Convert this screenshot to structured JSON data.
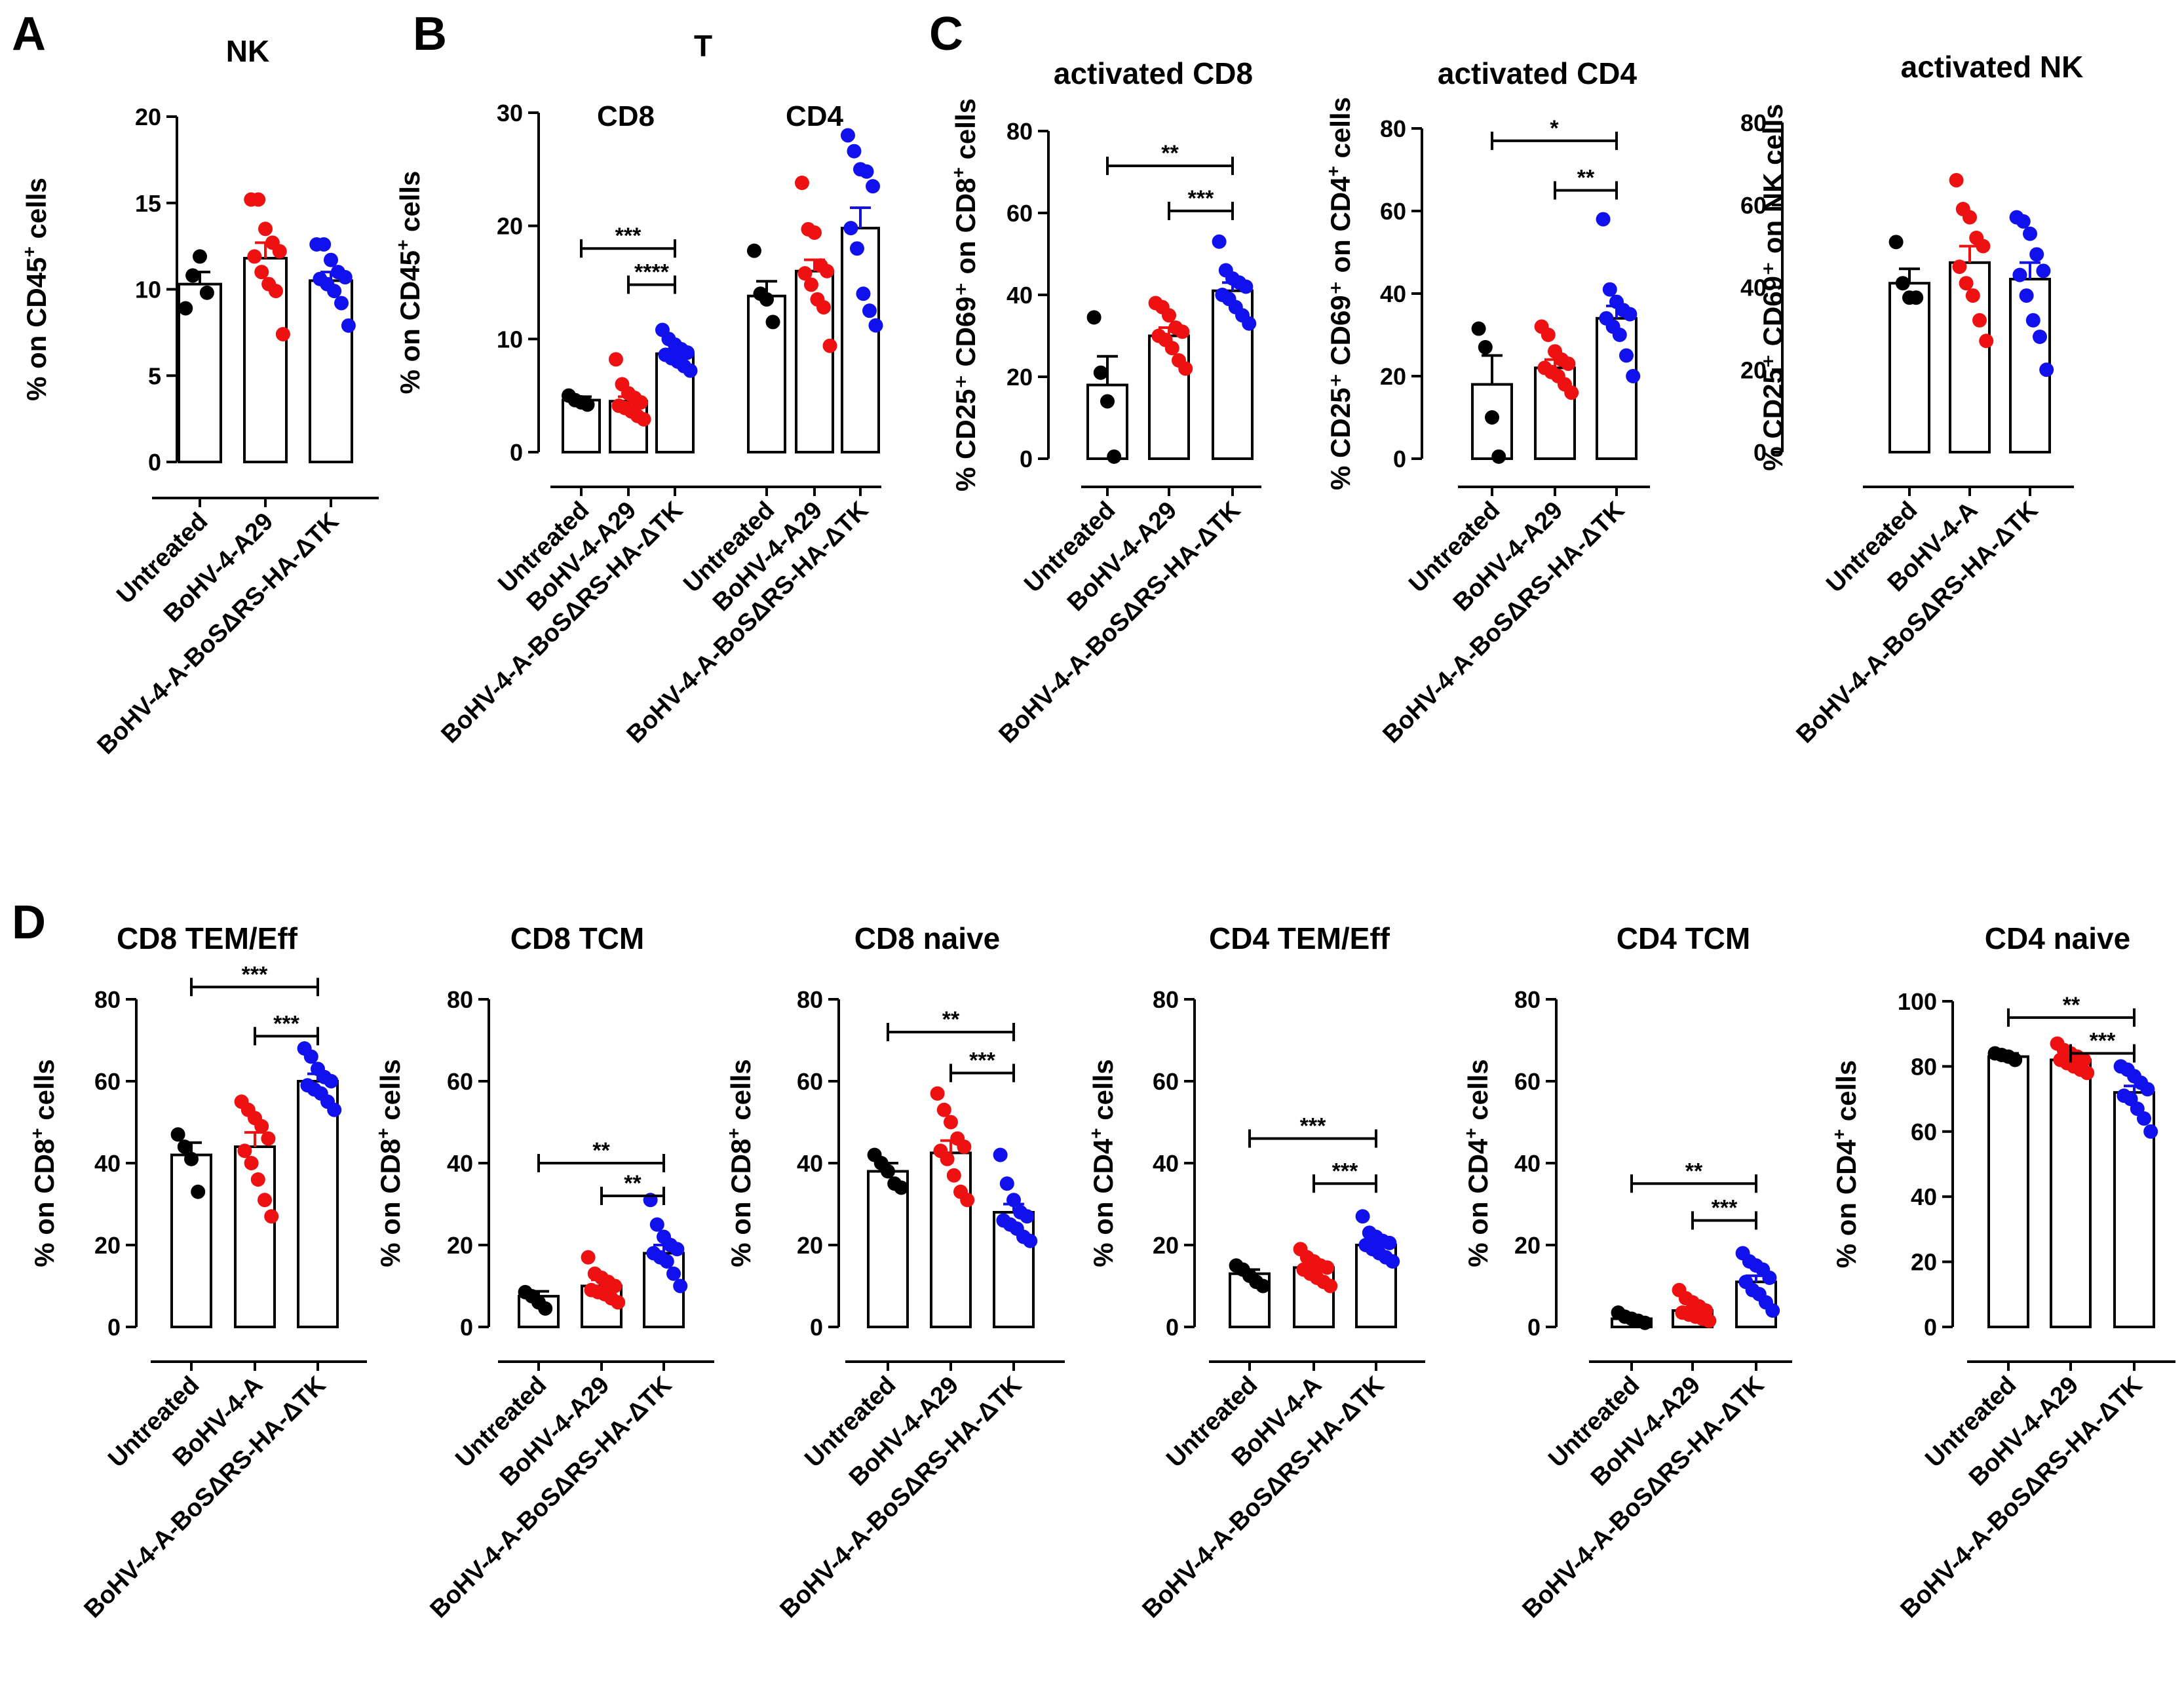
{
  "panel_letters": [
    "A",
    "B",
    "C",
    "D"
  ],
  "colors": {
    "untreated": "#000000",
    "virus": "#ee1111",
    "bosaRS": "#1111ee"
  },
  "chart_data": [
    {
      "id": "A",
      "type": "bar",
      "title": "NK",
      "ylabel": "% on CD45",
      "ylabel_sup": "+",
      "ylabel_tail": " cells",
      "ylim": [
        0,
        20
      ],
      "ticks": [
        0,
        5,
        10,
        15,
        20
      ],
      "categories": [
        "Untreated",
        "BoHV-4-A29",
        "BoHV-4-A-BoSΔRS-HA-ΔTK"
      ],
      "values": [
        10.3,
        11.8,
        10.5
      ],
      "sem": [
        0.7,
        0.9,
        0.5
      ],
      "points": [
        [
          8.9,
          10.8,
          11.9,
          9.8
        ],
        [
          15.2,
          15.2,
          13.5,
          12.7,
          12.2,
          11.9,
          11.0,
          10.3,
          9.9,
          7.4
        ],
        [
          12.6,
          12.6,
          11.7,
          11.0,
          10.7,
          10.6,
          10.3,
          9.9,
          9.2,
          7.9
        ]
      ],
      "brackets": []
    },
    {
      "id": "B",
      "type": "bar",
      "title": "T",
      "ylabel": "% on CD45",
      "ylabel_sup": "+",
      "ylabel_tail": " cells",
      "ylim": [
        0,
        30
      ],
      "ticks": [
        0,
        10,
        20,
        30
      ],
      "subtitles": [
        "CD8",
        "CD4"
      ],
      "categories": [
        "Untreated",
        "BoHV-4-A29",
        "BoHV-4-A-BoSΔRS-HA-ΔTK",
        "Untreated",
        "BoHV-4-A29",
        "BoHV-4-A-BoSΔRS-HA-ΔTK"
      ],
      "values": [
        4.6,
        4.5,
        8.7,
        13.8,
        16.0,
        19.8
      ],
      "sem": [
        0.3,
        0.4,
        0.4,
        1.3,
        1.0,
        1.8
      ],
      "points": [
        [
          5.0,
          4.6,
          4.4,
          4.2
        ],
        [
          8.2,
          6.0,
          5.2,
          4.8,
          4.4,
          4.1,
          3.9,
          3.6,
          3.2,
          2.9
        ],
        [
          10.8,
          10.0,
          9.5,
          9.1,
          8.8,
          8.6,
          8.3,
          8.0,
          7.6,
          7.2
        ],
        [
          17.8,
          14.0,
          13.5,
          11.5
        ],
        [
          23.8,
          19.7,
          19.4,
          16.5,
          16.0,
          15.8,
          14.8,
          13.5,
          12.8,
          9.4
        ],
        [
          28.0,
          26.6,
          25.0,
          24.8,
          23.5,
          19.8,
          18.0,
          14.0,
          12.5,
          11.2
        ]
      ],
      "brackets": [
        {
          "from": 0,
          "to": 2,
          "label": "***",
          "y": 18.0
        },
        {
          "from": 1,
          "to": 2,
          "label": "****",
          "y": 14.8
        }
      ]
    },
    {
      "id": "C1",
      "type": "bar",
      "title": "activated CD8",
      "ylabel": "% CD25⁺ CD69⁺ on CD8",
      "ylabel_sup": "+",
      "ylabel_tail": " cells",
      "ylim": [
        0,
        80
      ],
      "ticks": [
        0,
        20,
        40,
        60,
        80
      ],
      "categories": [
        "Untreated",
        "BoHV-4-A29",
        "BoHV-4-A-BoSΔRS-HA-ΔTK"
      ],
      "values": [
        18,
        30,
        41
      ],
      "sem": [
        7,
        2,
        2
      ],
      "points": [
        [
          34.5,
          21,
          14,
          0.5
        ],
        [
          38,
          37,
          35,
          32,
          31,
          30,
          29,
          27,
          24,
          22
        ],
        [
          53,
          46,
          44,
          43,
          42,
          40,
          39,
          37,
          35,
          33
        ]
      ],
      "brackets": [
        {
          "from": 0,
          "to": 2,
          "label": "**",
          "y": 71.5
        },
        {
          "from": 1,
          "to": 2,
          "label": "***",
          "y": 60.5
        }
      ]
    },
    {
      "id": "C2",
      "type": "bar",
      "title": "activated CD4",
      "ylabel": "% CD25⁺ CD69⁺ on CD4",
      "ylabel_sup": "+",
      "ylabel_tail": " cells",
      "ylim": [
        0,
        80
      ],
      "ticks": [
        0,
        20,
        40,
        60,
        80
      ],
      "categories": [
        "Untreated",
        "BoHV-4-A29",
        "BoHV-4-A-BoSΔRS-HA-ΔTK"
      ],
      "values": [
        18,
        22,
        34
      ],
      "sem": [
        7,
        2,
        3
      ],
      "points": [
        [
          31.5,
          27,
          10,
          0.5
        ],
        [
          32,
          30,
          26,
          24,
          23,
          22,
          21,
          20,
          18,
          16
        ],
        [
          58,
          41,
          38,
          36,
          35,
          34,
          32,
          30,
          25,
          20
        ]
      ],
      "brackets": [
        {
          "from": 0,
          "to": 2,
          "label": "*",
          "y": 77
        },
        {
          "from": 1,
          "to": 2,
          "label": "**",
          "y": 65
        }
      ]
    },
    {
      "id": "C3",
      "type": "bar",
      "title": "activated NK",
      "ylabel": "% CD25⁺ CD69⁺ on NK",
      "ylabel_sup": "",
      "ylabel_tail": " cells",
      "ylim": [
        0,
        80
      ],
      "ticks": [
        0,
        20,
        40,
        60,
        80
      ],
      "categories": [
        "Untreated",
        "BoHV-4-A",
        "BoHV-4-A-BoSΔRS-HA-ΔTK"
      ],
      "values": [
        41,
        46,
        42
      ],
      "sem": [
        3.5,
        4,
        4
      ],
      "points": [
        [
          51,
          41,
          37.5,
          37.5
        ],
        [
          66,
          59,
          57,
          52,
          50,
          45,
          41,
          38,
          32,
          27
        ],
        [
          57,
          56,
          53,
          48,
          44,
          43,
          38,
          32,
          28,
          20
        ]
      ],
      "brackets": []
    },
    {
      "id": "D1",
      "type": "bar",
      "title": "CD8 TEM/Eff",
      "ylabel": "% on CD8",
      "ylabel_sup": "+",
      "ylabel_tail": " cells",
      "ylim": [
        0,
        80
      ],
      "ticks": [
        0,
        20,
        40,
        60,
        80
      ],
      "categories": [
        "Untreated",
        "BoHV-4-A",
        "BoHV-4-A-BoSΔRS-HA-ΔTK"
      ],
      "values": [
        42,
        44,
        60
      ],
      "sem": [
        3,
        3.5,
        1.8
      ],
      "points": [
        [
          47,
          44,
          41,
          33
        ],
        [
          55,
          53,
          51,
          49,
          46,
          43,
          40,
          36,
          31,
          27
        ],
        [
          68,
          66,
          63,
          61,
          60,
          59,
          58,
          57,
          55,
          53
        ]
      ],
      "brackets": [
        {
          "from": 0,
          "to": 2,
          "label": "***",
          "y": 83
        },
        {
          "from": 1,
          "to": 2,
          "label": "***",
          "y": 71
        }
      ]
    },
    {
      "id": "D2",
      "type": "bar",
      "title": "CD8 TCM",
      "ylabel": "% on CD8",
      "ylabel_sup": "+",
      "ylabel_tail": " cells",
      "ylim": [
        0,
        80
      ],
      "ticks": [
        0,
        20,
        40,
        60,
        80
      ],
      "categories": [
        "Untreated",
        "BoHV-4-A29",
        "BoHV-4-A-BoSΔRS-HA-ΔTK"
      ],
      "values": [
        7.5,
        10,
        18
      ],
      "sem": [
        1.2,
        1.5,
        2
      ],
      "points": [
        [
          8.5,
          7.5,
          6,
          4.5
        ],
        [
          17,
          13,
          12,
          11,
          10,
          9,
          8.5,
          8,
          7,
          6
        ],
        [
          31,
          25,
          22,
          20,
          19,
          18,
          17,
          16,
          13,
          10
        ]
      ],
      "brackets": [
        {
          "from": 0,
          "to": 2,
          "label": "**",
          "y": 40
        },
        {
          "from": 1,
          "to": 2,
          "label": "**",
          "y": 32
        }
      ]
    },
    {
      "id": "D3",
      "type": "bar",
      "title": "CD8 naive",
      "ylabel": "% on CD8",
      "ylabel_sup": "+",
      "ylabel_tail": " cells",
      "ylim": [
        0,
        80
      ],
      "ticks": [
        0,
        20,
        40,
        60,
        80
      ],
      "categories": [
        "Untreated",
        "BoHV-4-A29",
        "BoHV-4-A-BoSΔRS-HA-ΔTK"
      ],
      "values": [
        38,
        42.5,
        28
      ],
      "sem": [
        2,
        3,
        2
      ],
      "points": [
        [
          42,
          40,
          38,
          35,
          34
        ],
        [
          57,
          53,
          50,
          46,
          44,
          43,
          41,
          37,
          33,
          31
        ],
        [
          42,
          35,
          31,
          28,
          27,
          26,
          25,
          24,
          22,
          21
        ]
      ],
      "brackets": [
        {
          "from": 0,
          "to": 2,
          "label": "**",
          "y": 72
        },
        {
          "from": 1,
          "to": 2,
          "label": "***",
          "y": 62
        }
      ]
    },
    {
      "id": "D4",
      "type": "bar",
      "title": "CD4 TEM/Eff",
      "ylabel": "% on CD4",
      "ylabel_sup": "+",
      "ylabel_tail": " cells",
      "ylim": [
        0,
        80
      ],
      "ticks": [
        0,
        20,
        40,
        60,
        80
      ],
      "categories": [
        "Untreated",
        "BoHV-4-A",
        "BoHV-4-A-BoSΔRS-HA-ΔTK"
      ],
      "values": [
        13,
        14.5,
        20
      ],
      "sem": [
        1,
        1,
        1
      ],
      "points": [
        [
          15,
          14,
          12.5,
          11,
          10
        ],
        [
          19,
          17,
          16,
          15,
          14.5,
          14,
          13,
          12,
          11,
          10
        ],
        [
          27,
          23,
          22,
          21,
          20.5,
          20,
          19,
          18,
          17,
          16
        ]
      ],
      "brackets": [
        {
          "from": 0,
          "to": 2,
          "label": "***",
          "y": 46
        },
        {
          "from": 1,
          "to": 2,
          "label": "***",
          "y": 35
        }
      ]
    },
    {
      "id": "D5",
      "type": "bar",
      "title": "CD4 TCM",
      "ylabel": "% on CD4",
      "ylabel_sup": "+",
      "ylabel_tail": " cells",
      "ylim": [
        0,
        80
      ],
      "ticks": [
        0,
        20,
        40,
        60,
        80
      ],
      "categories": [
        "Untreated",
        "BoHV-4-A29",
        "BoHV-4-A-BoSΔRS-HA-ΔTK"
      ],
      "values": [
        2,
        4,
        11
      ],
      "sem": [
        0.5,
        0.8,
        1.5
      ],
      "points": [
        [
          3.5,
          2.5,
          2,
          1.5,
          1
        ],
        [
          9,
          7,
          6,
          5,
          4,
          3.5,
          3,
          2.5,
          2,
          1.5
        ],
        [
          18,
          16,
          15,
          14,
          12,
          11,
          9,
          8,
          6,
          4
        ]
      ],
      "brackets": [
        {
          "from": 0,
          "to": 2,
          "label": "**",
          "y": 35
        },
        {
          "from": 1,
          "to": 2,
          "label": "***",
          "y": 26
        }
      ]
    },
    {
      "id": "D6",
      "type": "bar",
      "title": "CD4 naive",
      "ylabel": "% on CD4",
      "ylabel_sup": "+",
      "ylabel_tail": " cells",
      "ylim": [
        0,
        100
      ],
      "ticks": [
        0,
        20,
        40,
        60,
        80,
        100
      ],
      "categories": [
        "Untreated",
        "BoHV-4-A29",
        "BoHV-4-A-BoSΔRS-HA-ΔTK"
      ],
      "values": [
        83,
        82,
        72
      ],
      "sem": [
        1,
        1,
        2
      ],
      "points": [
        [
          84,
          83.5,
          83,
          82
        ],
        [
          87,
          85,
          84,
          83,
          82,
          82,
          81,
          80,
          79,
          78
        ],
        [
          80,
          79,
          77,
          75,
          73,
          71,
          70,
          67,
          64,
          60
        ]
      ],
      "brackets": [
        {
          "from": 0,
          "to": 2,
          "label": "**",
          "y": 95
        },
        {
          "from": 1,
          "to": 2,
          "label": "***",
          "y": 84
        }
      ]
    }
  ]
}
